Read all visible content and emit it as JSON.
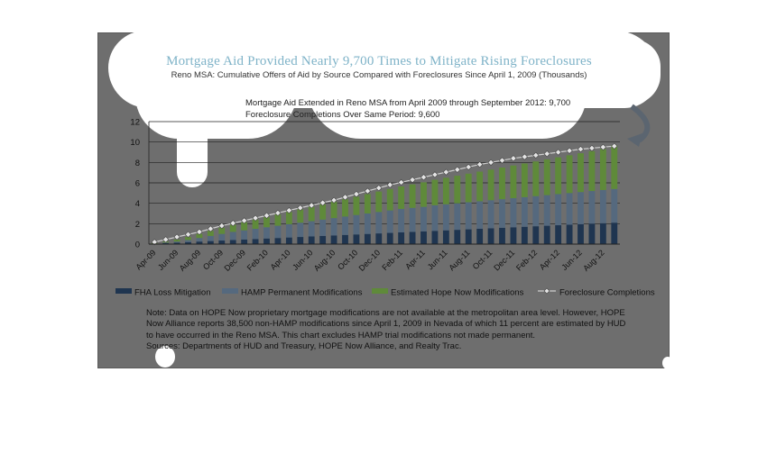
{
  "chart_data": {
    "type": "bar",
    "title": "Mortgage Aid Provided Nearly 9,700 Times to Mitigate Rising Foreclosures",
    "subtitle": "Reno MSA: Cumulative Offers of Aid by Source Compared with Foreclosures Since April 1, 2009  (Thousands)",
    "annotation": [
      "Mortgage Aid Extended in Reno MSA from April 2009 through September 2012: 9,700",
      "Foreclosure Completions Over Same Period: 9,600"
    ],
    "ylim": [
      0,
      12
    ],
    "yticks": [
      0,
      2,
      4,
      6,
      8,
      10,
      12
    ],
    "categories": [
      "Apr-09",
      "May-09",
      "Jun-09",
      "Jul-09",
      "Aug-09",
      "Sep-09",
      "Oct-09",
      "Nov-09",
      "Dec-09",
      "Jan-10",
      "Feb-10",
      "Mar-10",
      "Apr-10",
      "May-10",
      "Jun-10",
      "Jul-10",
      "Aug-10",
      "Sep-10",
      "Oct-10",
      "Nov-10",
      "Dec-10",
      "Jan-11",
      "Feb-11",
      "Mar-11",
      "Apr-11",
      "May-11",
      "Jun-11",
      "Jul-11",
      "Aug-11",
      "Sep-11",
      "Oct-11",
      "Nov-11",
      "Dec-11",
      "Jan-12",
      "Feb-12",
      "Mar-12",
      "Apr-12",
      "May-12",
      "Jun-12",
      "Jul-12",
      "Aug-12",
      "Sep-12"
    ],
    "tick_labels": [
      "Apr-09",
      "Jun-09",
      "Aug-09",
      "Oct-09",
      "Dec-09",
      "Feb-10",
      "Apr-10",
      "Jun-10",
      "Aug-10",
      "Oct-10",
      "Dec-10",
      "Feb-11",
      "Apr-11",
      "Jun-11",
      "Aug-11",
      "Oct-11",
      "Dec-11",
      "Feb-12",
      "Apr-12",
      "Jun-12",
      "Aug-12"
    ],
    "series": [
      {
        "name": "FHA Loss Mitigation",
        "kind": "bar",
        "color": "#1f3550",
        "values": [
          0.05,
          0.1,
          0.15,
          0.2,
          0.25,
          0.3,
          0.35,
          0.4,
          0.45,
          0.5,
          0.55,
          0.6,
          0.65,
          0.7,
          0.75,
          0.8,
          0.85,
          0.9,
          0.95,
          1.0,
          1.05,
          1.1,
          1.15,
          1.2,
          1.25,
          1.3,
          1.35,
          1.4,
          1.45,
          1.5,
          1.55,
          1.6,
          1.65,
          1.7,
          1.75,
          1.8,
          1.85,
          1.9,
          1.95,
          2.0,
          2.05,
          2.1
        ]
      },
      {
        "name": "HAMP Permanent Modifications",
        "kind": "bar",
        "color": "#55697e",
        "values": [
          0.0,
          0.05,
          0.1,
          0.2,
          0.35,
          0.5,
          0.65,
          0.8,
          0.9,
          1.0,
          1.1,
          1.2,
          1.3,
          1.4,
          1.5,
          1.6,
          1.7,
          1.8,
          1.9,
          2.0,
          2.1,
          2.2,
          2.3,
          2.35,
          2.4,
          2.5,
          2.55,
          2.6,
          2.65,
          2.7,
          2.75,
          2.8,
          2.85,
          2.9,
          2.95,
          3.0,
          3.05,
          3.1,
          3.15,
          3.2,
          3.25,
          3.3
        ]
      },
      {
        "name": "Estimated Hope Now Modifications",
        "kind": "bar",
        "color": "#5f8a3a",
        "values": [
          0.05,
          0.1,
          0.2,
          0.3,
          0.4,
          0.5,
          0.6,
          0.7,
          0.8,
          0.9,
          1.0,
          1.1,
          1.2,
          1.3,
          1.4,
          1.5,
          1.6,
          1.7,
          1.8,
          1.9,
          2.0,
          2.1,
          2.2,
          2.3,
          2.4,
          2.5,
          2.6,
          2.7,
          2.8,
          2.9,
          3.0,
          3.1,
          3.2,
          3.3,
          3.4,
          3.5,
          3.6,
          3.7,
          3.8,
          3.9,
          4.0,
          4.3
        ]
      },
      {
        "name": "Foreclosure Completions",
        "kind": "line",
        "color": "#d0d0d0",
        "values": [
          0.2,
          0.45,
          0.7,
          0.95,
          1.2,
          1.5,
          1.8,
          2.05,
          2.3,
          2.55,
          2.8,
          3.05,
          3.3,
          3.55,
          3.8,
          4.05,
          4.3,
          4.6,
          4.9,
          5.2,
          5.5,
          5.8,
          6.05,
          6.3,
          6.55,
          6.8,
          7.05,
          7.3,
          7.55,
          7.8,
          8.0,
          8.2,
          8.4,
          8.55,
          8.7,
          8.85,
          9.0,
          9.15,
          9.3,
          9.4,
          9.5,
          9.6
        ]
      }
    ],
    "legend_position": "bottom",
    "grid": true
  },
  "notes": [
    "Note: Data on HOPE Now proprietary mortgage modifications are not available at the metropolitan area level. However, HOPE",
    "Now Alliance reports 38,500 non-HAMP modifications since April 1, 2009 in Nevada of which 11 percent are estimated by HUD",
    "to have occurred in the Reno MSA. This chart excludes HAMP trial modifications not made permanent.",
    "Sources: Departments of HUD and Treasury, HOPE Now Alliance, and Realty Trac."
  ]
}
